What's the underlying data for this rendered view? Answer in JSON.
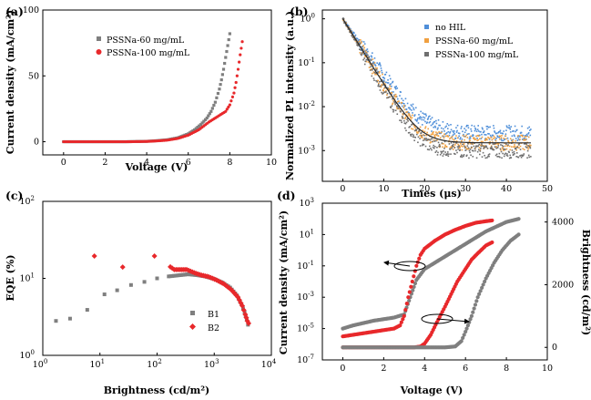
{
  "chart_data": [
    {
      "id": "a",
      "panel_label": "(a)",
      "type": "scatter",
      "xlabel": "Voltage (V)",
      "ylabel": "Current density (mA/cm²)",
      "xlim": [
        -1,
        10
      ],
      "ylim": [
        -10,
        100
      ],
      "xticks": [
        0,
        2,
        4,
        6,
        8,
        10
      ],
      "yticks": [
        0,
        50,
        100
      ],
      "tick_labels_x": [
        "0",
        "2",
        "4",
        "6",
        "8",
        "10"
      ],
      "tick_labels_y": [
        "0",
        "50",
        "100"
      ],
      "legend_position": "top-left",
      "series": [
        {
          "name": "PSSNa-60 mg/mL",
          "color": "#7f7f7f",
          "marker": "square",
          "x": [
            0,
            1,
            2,
            3,
            4,
            4.5,
            5,
            5.5,
            6,
            6.3,
            6.6,
            6.9,
            7.1,
            7.3,
            7.5,
            7.6,
            7.7,
            7.8,
            7.9,
            8.0
          ],
          "y": [
            0,
            0,
            0,
            0,
            0.3,
            0.8,
            1.5,
            3,
            6,
            9,
            13,
            18,
            23,
            30,
            40,
            47,
            55,
            64,
            73,
            82
          ]
        },
        {
          "name": "PSSNa-100 mg/mL",
          "color": "#e8282b",
          "marker": "circle",
          "x": [
            0,
            1,
            2,
            3,
            4,
            4.5,
            5,
            5.5,
            6,
            6.5,
            7,
            7.4,
            7.8,
            8.0,
            8.2,
            8.3,
            8.4,
            8.5,
            8.6
          ],
          "y": [
            0,
            0,
            0,
            0,
            0.2,
            0.6,
            1.2,
            2.5,
            5,
            9,
            15,
            19,
            23,
            28,
            37,
            45,
            55,
            66,
            76
          ]
        }
      ]
    },
    {
      "id": "b",
      "panel_label": "(b)",
      "type": "scatter",
      "xlabel": "Times (μs)",
      "ylabel": "Normalized PL intensity (a.u.)",
      "xlim": [
        -5,
        50
      ],
      "ylim_log10": [
        -3.7,
        0.2
      ],
      "xticks": [
        0,
        10,
        20,
        30,
        40,
        50
      ],
      "yticks_log10": [
        -3,
        -2,
        -1,
        0
      ],
      "tick_labels_x": [
        "0",
        "10",
        "20",
        "30",
        "40",
        "50"
      ],
      "tick_labels_y": [
        "10",
        "10",
        "10",
        "10"
      ],
      "tick_label_exponents_y": [
        "-3",
        "-2",
        "-1",
        "0"
      ],
      "legend_position": "top-right",
      "series": [
        {
          "name": "no HIL",
          "color": "#4f8fd9",
          "tau": 3.3,
          "floor": 0.0025
        },
        {
          "name": "PSSNa-60 mg/mL",
          "color": "#f0a040",
          "tau": 2.9,
          "floor": 0.0015
        },
        {
          "name": "PSSNa-100 mg/mL",
          "color": "#6f6f6f",
          "tau": 2.7,
          "floor": 0.001
        }
      ]
    },
    {
      "id": "c",
      "panel_label": "(c)",
      "type": "scatter",
      "xlabel": "Brightness (cd/m²)",
      "ylabel": "EQE (%)",
      "xlim_log10": [
        0,
        4
      ],
      "ylim_log10": [
        0,
        2
      ],
      "xticks_log10": [
        0,
        1,
        2,
        3,
        4
      ],
      "yticks_log10": [
        0,
        1,
        2
      ],
      "tick_labels_x": [
        "10",
        "10",
        "10",
        "10",
        "10"
      ],
      "tick_label_exponents_x": [
        "0",
        "1",
        "2",
        "3",
        "4"
      ],
      "tick_labels_y": [
        "10",
        "10",
        "10"
      ],
      "tick_label_exponents_y": [
        "0",
        "1",
        "2"
      ],
      "legend_position": "bottom-right",
      "series": [
        {
          "name": "B1",
          "color": "#7f7f7f",
          "marker": "square",
          "x": [
            1.7,
            3,
            6,
            12,
            20,
            35,
            60,
            100,
            160,
            250,
            350,
            500,
            700,
            1000,
            1400,
            1900,
            2500,
            3000,
            3400,
            3700,
            3900
          ],
          "y": [
            2.8,
            3.0,
            3.9,
            6.2,
            7.0,
            8.2,
            9.0,
            10.0,
            10.6,
            11.0,
            11.3,
            11.0,
            10.6,
            9.8,
            8.8,
            7.6,
            6.0,
            4.6,
            3.6,
            2.9,
            2.5
          ]
        },
        {
          "name": "B2",
          "color": "#e8282b",
          "marker": "diamond",
          "x": [
            8,
            25,
            90,
            200,
            330,
            450,
            600,
            800,
            1100,
            1500,
            2000,
            2600,
            3100,
            3500,
            3800,
            4000
          ],
          "y": [
            19.5,
            14.0,
            19.5,
            13.0,
            13.0,
            11.8,
            11.0,
            10.5,
            9.5,
            8.4,
            7.1,
            5.7,
            4.4,
            3.4,
            2.8,
            2.6
          ]
        }
      ]
    },
    {
      "id": "d",
      "panel_label": "(d)",
      "type": "scatter",
      "xlabel": "Voltage (V)",
      "ylabel_left": "Current density (mA/cm²)",
      "ylabel_right": "Brightness (cd/m²)",
      "xlim": [
        -1,
        10
      ],
      "ylim_left_log10": [
        -7,
        3
      ],
      "ylim_right": [
        -400,
        4600
      ],
      "xticks": [
        0,
        2,
        4,
        6,
        8,
        10
      ],
      "yticks_left_log10": [
        -7,
        -5,
        -3,
        -1,
        1,
        3
      ],
      "yticks_right": [
        0,
        2000,
        4000
      ],
      "tick_labels_x": [
        "0",
        "2",
        "4",
        "6",
        "8",
        "10"
      ],
      "tick_labels_y_left": [
        "10",
        "10",
        "10",
        "10",
        "10",
        "10"
      ],
      "tick_label_exponents_y_left": [
        "-7",
        "-5",
        "-3",
        "-1",
        "1",
        "3"
      ],
      "tick_labels_y_right": [
        "0",
        "2000",
        "4000"
      ],
      "series": [
        {
          "name": "gray current density",
          "axis": "left",
          "color": "#7f7f7f",
          "x": [
            0,
            0.5,
            1,
            1.5,
            2,
            2.5,
            3,
            3.3,
            3.6,
            4,
            4.5,
            5,
            5.5,
            6,
            6.5,
            7,
            7.5,
            8,
            8.6
          ],
          "log10y": [
            -5.0,
            -4.8,
            -4.65,
            -4.5,
            -4.4,
            -4.3,
            -4.1,
            -3.0,
            -1.9,
            -1.2,
            -0.8,
            -0.4,
            0.0,
            0.4,
            0.8,
            1.2,
            1.5,
            1.8,
            2.0
          ]
        },
        {
          "name": "red current density",
          "axis": "left",
          "color": "#e8282b",
          "x": [
            0,
            0.5,
            1,
            1.5,
            2,
            2.5,
            2.8,
            3.0,
            3.2,
            3.4,
            3.6,
            3.8,
            4,
            4.5,
            5,
            5.5,
            6,
            6.5,
            7,
            7.3
          ],
          "log10y": [
            -5.5,
            -5.4,
            -5.3,
            -5.2,
            -5.1,
            -5.0,
            -4.8,
            -4.2,
            -3.0,
            -2.0,
            -1.0,
            -0.3,
            0.1,
            0.6,
            1.0,
            1.3,
            1.55,
            1.75,
            1.85,
            1.9
          ]
        },
        {
          "name": "red brightness",
          "axis": "right",
          "color": "#e8282b",
          "x": [
            0,
            1,
            2,
            3,
            3.5,
            3.8,
            4,
            4.3,
            4.6,
            5,
            5.3,
            5.6,
            6,
            6.3,
            6.6,
            7,
            7.3
          ],
          "y": [
            0,
            0,
            0,
            0,
            0,
            30,
            120,
            400,
            800,
            1300,
            1700,
            2100,
            2500,
            2800,
            3000,
            3250,
            3350
          ]
        },
        {
          "name": "gray brightness",
          "axis": "right",
          "color": "#7f7f7f",
          "x": [
            0,
            1,
            2,
            3,
            4,
            5,
            5.5,
            5.8,
            6,
            6.3,
            6.6,
            7,
            7.4,
            7.8,
            8.2,
            8.6
          ],
          "y": [
            0,
            0,
            0,
            0,
            0,
            0,
            30,
            200,
            500,
            1000,
            1600,
            2200,
            2700,
            3100,
            3400,
            3600
          ]
        }
      ],
      "annotations": [
        "arrow pointing left to current density axis",
        "arrow pointing right to brightness axis"
      ]
    }
  ]
}
